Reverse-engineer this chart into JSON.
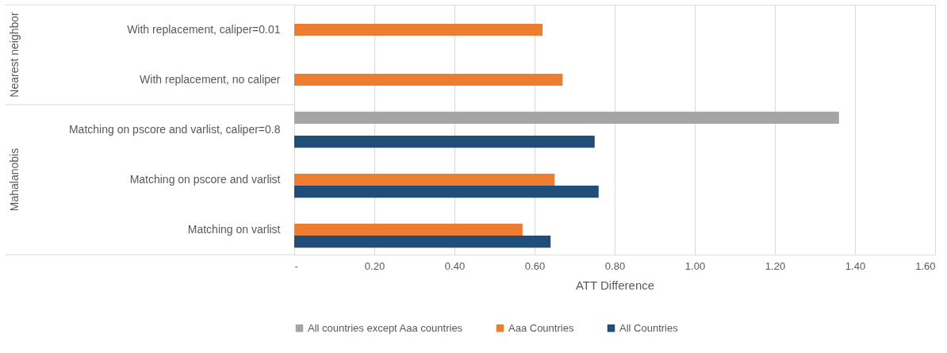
{
  "chart_data": {
    "type": "bar",
    "orientation": "horizontal",
    "xlabel": "ATT Difference",
    "categories": [
      "With replacement, caliper=0.01",
      "With replacement, no caliper",
      "Matching on pscore and varlist, caliper=0.8",
      "Matching on pscore and varlist",
      "Matching on varlist"
    ],
    "series": [
      {
        "name": "All countries except Aaa countries",
        "color": "#a5a5a5",
        "values": [
          null,
          null,
          1.36,
          null,
          null
        ]
      },
      {
        "name": "Aaa Countries",
        "color": "#ed7d31",
        "values": [
          0.62,
          0.67,
          null,
          0.65,
          0.57
        ]
      },
      {
        "name": "All Countries",
        "color": "#1f4e79",
        "values": [
          null,
          null,
          0.75,
          0.76,
          0.64
        ]
      }
    ],
    "xlim": [
      0,
      1.6
    ],
    "xticks": [
      {
        "value": 0,
        "label": "-"
      },
      {
        "value": 0.2,
        "label": "0.20"
      },
      {
        "value": 0.4,
        "label": "0.40"
      },
      {
        "value": 0.6,
        "label": "0.60"
      },
      {
        "value": 0.8,
        "label": "0.80"
      },
      {
        "value": 1.0,
        "label": "1.00"
      },
      {
        "value": 1.2,
        "label": "1.20"
      },
      {
        "value": 1.4,
        "label": "1.40"
      },
      {
        "value": 1.6,
        "label": "1.60"
      }
    ],
    "grid": "x",
    "legend": "bottom",
    "annotations": [
      "Nearest neighbor",
      "Mahalanobis"
    ]
  }
}
